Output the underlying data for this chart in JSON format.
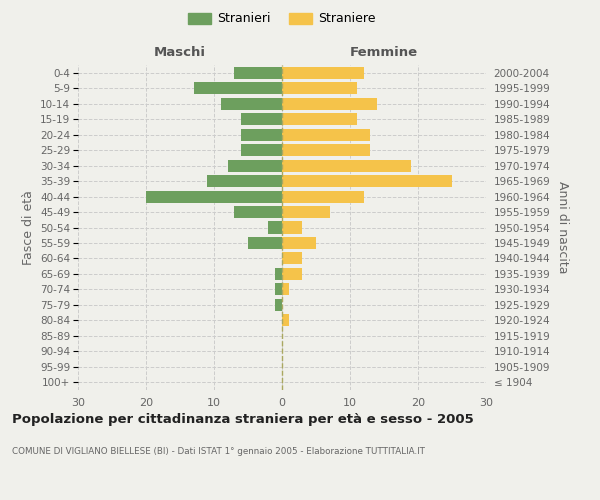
{
  "age_groups": [
    "100+",
    "95-99",
    "90-94",
    "85-89",
    "80-84",
    "75-79",
    "70-74",
    "65-69",
    "60-64",
    "55-59",
    "50-54",
    "45-49",
    "40-44",
    "35-39",
    "30-34",
    "25-29",
    "20-24",
    "15-19",
    "10-14",
    "5-9",
    "0-4"
  ],
  "birth_years": [
    "≤ 1904",
    "1905-1909",
    "1910-1914",
    "1915-1919",
    "1920-1924",
    "1925-1929",
    "1930-1934",
    "1935-1939",
    "1940-1944",
    "1945-1949",
    "1950-1954",
    "1955-1959",
    "1960-1964",
    "1965-1969",
    "1970-1974",
    "1975-1979",
    "1980-1984",
    "1985-1989",
    "1990-1994",
    "1995-1999",
    "2000-2004"
  ],
  "males": [
    0,
    0,
    0,
    0,
    0,
    1,
    1,
    1,
    0,
    5,
    2,
    7,
    20,
    11,
    8,
    6,
    6,
    6,
    9,
    13,
    7
  ],
  "females": [
    0,
    0,
    0,
    0,
    1,
    0,
    1,
    3,
    3,
    5,
    3,
    7,
    12,
    25,
    19,
    13,
    13,
    11,
    14,
    11,
    12
  ],
  "male_color": "#6d9f5e",
  "female_color": "#f5c34a",
  "background_color": "#f0f0eb",
  "grid_color": "#cccccc",
  "title": "Popolazione per cittadinanza straniera per età e sesso - 2005",
  "subtitle": "COMUNE DI VIGLIANO BIELLESE (BI) - Dati ISTAT 1° gennaio 2005 - Elaborazione TUTTITALIA.IT",
  "left_label": "Maschi",
  "right_label": "Femmine",
  "yleft_label": "Fasce di età",
  "yright_label": "Anni di nascita",
  "legend_males": "Stranieri",
  "legend_females": "Straniere",
  "xlim": 30
}
